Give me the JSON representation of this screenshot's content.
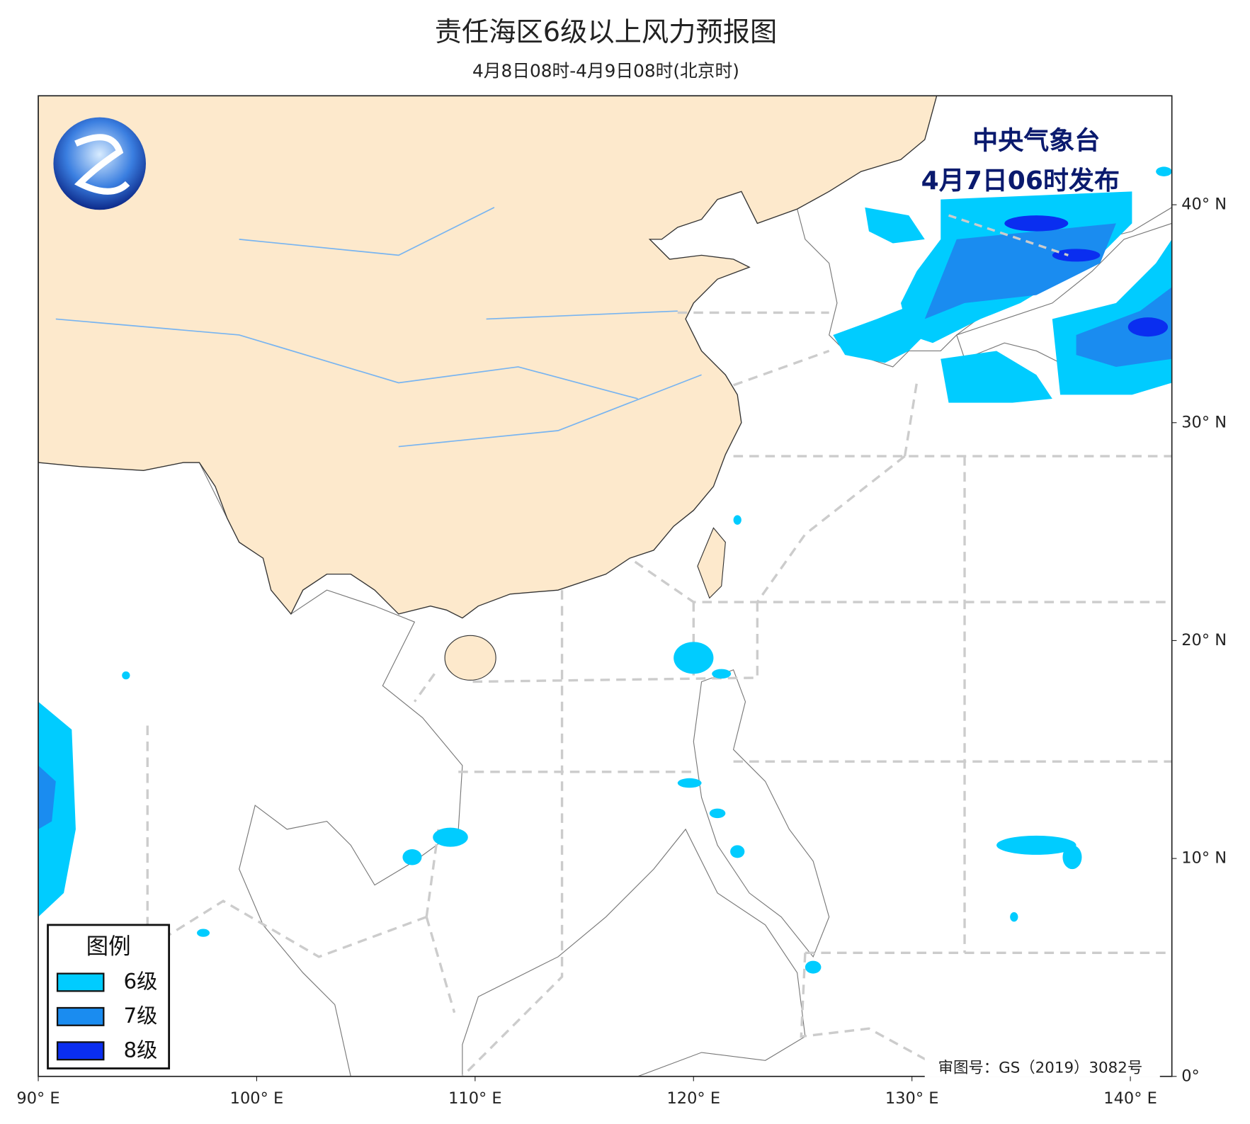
{
  "map": {
    "title": "责任海区6级以上风力预报图",
    "subtitle": "4月8日08时-4月9日08时(北京时)",
    "issuer": [
      "中央气象台",
      "4月7日06时发布"
    ],
    "approval": "审图号：GS（2019）3082号",
    "lon_range": [
      90,
      141.9
    ],
    "lat_range": [
      0,
      45
    ],
    "lon_ticks": [
      {
        "value": 90,
        "label": "90° E"
      },
      {
        "value": 100,
        "label": "100° E"
      },
      {
        "value": 110,
        "label": "110° E"
      },
      {
        "value": 120,
        "label": "120° E"
      },
      {
        "value": 130,
        "label": "130° E"
      },
      {
        "value": 140,
        "label": "140° E"
      }
    ],
    "lat_ticks": [
      {
        "value": 0,
        "label": "0°"
      },
      {
        "value": 10,
        "label": "10° N"
      },
      {
        "value": 20,
        "label": "20° N"
      },
      {
        "value": 30,
        "label": "30° N"
      },
      {
        "value": 40,
        "label": "40° N"
      }
    ],
    "legend": {
      "title": "图例",
      "items": [
        {
          "label": "6级",
          "color": "#00ccff"
        },
        {
          "label": "7级",
          "color": "#1a8cf0"
        },
        {
          "label": "8级",
          "color": "#0a2ef0"
        }
      ]
    }
  }
}
